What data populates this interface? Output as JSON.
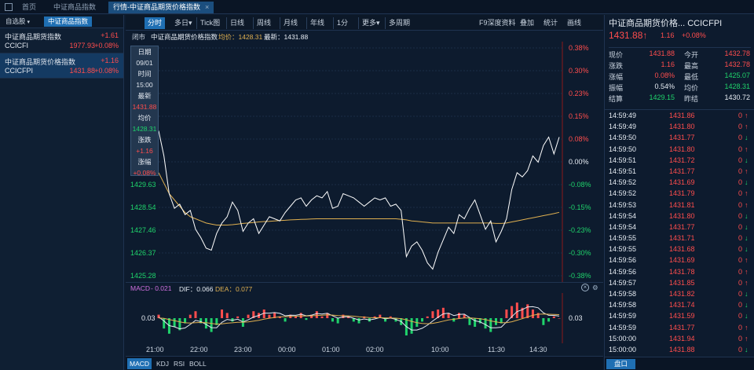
{
  "tabs": [
    {
      "label": "首页"
    },
    {
      "label": "中证商品指数"
    },
    {
      "label": "行情-中证商品期货价格指数",
      "close": "×"
    }
  ],
  "left": {
    "self_select": "自选股",
    "self_select_caret": "▾",
    "sector": "中证商品指数",
    "items": [
      {
        "name": "中证商品期货指数",
        "code": "CCICFI",
        "change": "+1.61",
        "price": "1977.93",
        "pct": "+0.08%"
      },
      {
        "name": "中证商品期货价格指数",
        "code": "CCICFPI",
        "change": "+1.16",
        "price": "1431.88",
        "pct": "+0.08%"
      }
    ]
  },
  "toolbar": {
    "items": [
      "分时",
      "多日",
      "Tick图",
      "日线",
      "周线",
      "月线",
      "年线",
      "1分",
      "更多",
      "多周期",
      "F9深度资料",
      "叠加",
      "统计",
      "画线"
    ],
    "dropdown": "▾"
  },
  "infoline": {
    "status": "闭市",
    "name": "中证商品期货价格指数",
    "avg_label": "均价：1428.31",
    "latest_label": "最新：1431.88"
  },
  "tooltip": [
    "日期",
    "09/01",
    "时间",
    "15:00",
    "最新",
    "1431.88",
    "均价",
    "1428.31",
    "涨跌",
    "+1.16",
    "涨幅",
    "+0.08%"
  ],
  "chart_data": {
    "type": "line",
    "prev_close": 1430.72,
    "y_left_ticks": [
      "1429.63",
      "1428.54",
      "1427.46",
      "1426.37",
      "1425.28"
    ],
    "y_right_ticks": [
      "0.38%",
      "0.30%",
      "0.23%",
      "0.15%",
      "0.08%",
      "0.00%",
      "-0.08%",
      "-0.15%",
      "-0.23%",
      "-0.30%",
      "-0.38%"
    ],
    "x_ticks": [
      "21:00",
      "22:00",
      "23:00",
      "00:00",
      "01:00",
      "02:00",
      "10:00",
      "11:30",
      "14:30"
    ],
    "price": [
      1432.2,
      1431.0,
      1429.2,
      1428.5,
      1428.7,
      1428.2,
      1428.4,
      1427.5,
      1427.1,
      1426.6,
      1426.5,
      1427.3,
      1427.8,
      1428.1,
      1428.8,
      1428.4,
      1427.4,
      1427.8,
      1428.0,
      1427.3,
      1427.7,
      1428.1,
      1428.0,
      1427.9,
      1428.3,
      1428.6,
      1428.9,
      1429.0,
      1428.6,
      1428.9,
      1429.1,
      1429.0,
      1429.3,
      1428.5,
      1428.6,
      1429.2,
      1429.1,
      1429.0,
      1428.8,
      1428.6,
      1428.8,
      1429.0,
      1428.9,
      1429.0,
      1428.6,
      1428.7,
      1428.4,
      1426.2,
      1426.7,
      1426.9,
      1426.5,
      1425.9,
      1425.6,
      1426.4,
      1427.0,
      1427.6,
      1427.3,
      1428.2,
      1428.0,
      1428.5,
      1428.9,
      1428.2,
      1427.5,
      1427.9,
      1426.9,
      1427.4,
      1428.0,
      1429.4,
      1430.2,
      1430.0,
      1430.3,
      1431.0,
      1430.7,
      1431.5,
      1431.9,
      1431.1,
      1431.9
    ],
    "avg": [
      1430.2,
      1429.7,
      1429.2,
      1428.9,
      1428.6,
      1428.3,
      1428.1,
      1428.0,
      1427.9,
      1427.8,
      1427.75,
      1427.7,
      1427.7,
      1427.7,
      1427.72,
      1427.75,
      1427.78,
      1427.8,
      1427.82,
      1427.85,
      1427.87,
      1427.88,
      1427.9,
      1427.92,
      1427.93,
      1427.95,
      1427.96,
      1427.97,
      1427.98,
      1427.99,
      1428.0,
      1428.0,
      1428.0,
      1428.0,
      1428.0,
      1428.0,
      1428.0,
      1428.0,
      1428.0,
      1428.0,
      1428.0,
      1428.0,
      1428.0,
      1428.0,
      1428.0,
      1428.0,
      1427.98,
      1427.95,
      1427.9,
      1427.88,
      1427.85,
      1427.83,
      1427.8,
      1427.8,
      1427.8,
      1427.8,
      1427.8,
      1427.8,
      1427.8,
      1427.8,
      1427.8,
      1427.8,
      1427.8,
      1427.8,
      1427.78,
      1427.78,
      1427.8,
      1427.85,
      1427.9,
      1427.95,
      1428.0,
      1428.05,
      1428.1,
      1428.15,
      1428.2,
      1428.25,
      1428.31
    ]
  },
  "macd": {
    "label": "MACD",
    "macd_value": "- 0.021",
    "dif_label": "DIF：0.066",
    "dea_label": "DEA：0.077",
    "left_tick": "0.03",
    "right_tick": "0.03",
    "bars": [
      0.2,
      -0.6,
      -0.9,
      -0.5,
      -0.7,
      -0.3,
      0.2,
      0.4,
      -0.3,
      -0.6,
      -0.8,
      -0.4,
      0.5,
      0.3,
      -0.2,
      0.1,
      -0.5,
      0.2,
      0.4,
      0.3,
      0.5,
      0.2,
      0.3,
      0.1,
      -0.2,
      0.2,
      0.1,
      0.3,
      -0.1,
      0.2,
      0.4,
      0.1,
      0.3,
      -0.2,
      -0.3,
      0.2,
      0.1,
      -0.2,
      -0.3,
      0.1,
      -0.2,
      0.1,
      0.2,
      -0.2,
      0.1,
      -0.2,
      -0.4,
      -1.0,
      -0.9,
      -0.5,
      -0.2,
      0.1,
      0.4,
      0.5,
      0.6,
      0.3,
      -0.2,
      0.3,
      0.2,
      -0.4,
      -0.5,
      -0.3,
      -0.6,
      -0.8,
      -0.4,
      -0.3,
      0.5,
      0.7,
      0.9,
      0.6,
      0.8,
      0.5,
      0.3,
      -0.4,
      -0.2,
      0.1,
      0.0
    ]
  },
  "bottom_tabs": [
    "MACD",
    "KDJ",
    "RSI",
    "BOLL"
  ],
  "right": {
    "title": "中证商品期货价格...   CCICFPI",
    "price": "1431.88",
    "price_arrow": "↑",
    "change": "1.16",
    "pct": "+0.08%",
    "stats": [
      [
        "现价",
        "1431.88",
        "今开",
        "1432.78"
      ],
      [
        "涨跌",
        "1.16",
        "最高",
        "1432.78"
      ],
      [
        "涨幅",
        "0.08%",
        "最低",
        "1425.07"
      ],
      [
        "振幅",
        "0.54%",
        "均价",
        "1428.31"
      ],
      [
        "结算",
        "1429.15",
        "昨结",
        "1430.72"
      ]
    ],
    "ticks": [
      [
        "14:59:49",
        "1431.86",
        "0",
        "up"
      ],
      [
        "14:59:49",
        "1431.80",
        "0",
        "up"
      ],
      [
        "14:59:50",
        "1431.77",
        "0",
        "dn"
      ],
      [
        "14:59:50",
        "1431.80",
        "0",
        "up"
      ],
      [
        "14:59:51",
        "1431.72",
        "0",
        "dn"
      ],
      [
        "14:59:51",
        "1431.77",
        "0",
        "up"
      ],
      [
        "14:59:52",
        "1431.69",
        "0",
        "dn"
      ],
      [
        "14:59:52",
        "1431.79",
        "0",
        "up"
      ],
      [
        "14:59:53",
        "1431.81",
        "0",
        "up"
      ],
      [
        "14:59:54",
        "1431.80",
        "0",
        "dn"
      ],
      [
        "14:59:54",
        "1431.77",
        "0",
        "dn"
      ],
      [
        "14:59:55",
        "1431.71",
        "0",
        "dn"
      ],
      [
        "14:59:55",
        "1431.68",
        "0",
        "dn"
      ],
      [
        "14:59:56",
        "1431.69",
        "0",
        "up"
      ],
      [
        "14:59:56",
        "1431.78",
        "0",
        "up"
      ],
      [
        "14:59:57",
        "1431.85",
        "0",
        "up"
      ],
      [
        "14:59:58",
        "1431.82",
        "0",
        "dn"
      ],
      [
        "14:59:58",
        "1431.74",
        "0",
        "dn"
      ],
      [
        "14:59:59",
        "1431.59",
        "0",
        "dn"
      ],
      [
        "14:59:59",
        "1431.77",
        "0",
        "up"
      ],
      [
        "15:00:00",
        "1431.94",
        "0",
        "up"
      ],
      [
        "15:00:00",
        "1431.88",
        "0",
        "dn"
      ]
    ],
    "bottom_button": "盘口"
  },
  "colors": {
    "up": "#ff4d4d",
    "down": "#1fd36b",
    "avg_line": "#e0b050",
    "price_line": "#ffffff",
    "accent": "#1f6fb3"
  }
}
